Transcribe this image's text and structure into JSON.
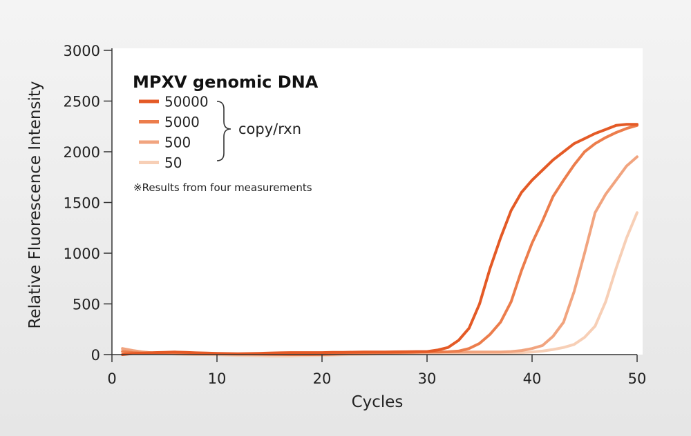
{
  "chart_data": {
    "type": "line",
    "title": "",
    "xlabel": "Cycles",
    "ylabel": "Relative Fluorescence Intensity",
    "xlim": [
      0,
      50
    ],
    "ylim": [
      0,
      3000
    ],
    "x_ticks": [
      0,
      10,
      20,
      30,
      40,
      50
    ],
    "y_ticks": [
      0,
      500,
      1000,
      1500,
      2000,
      2500,
      3000
    ],
    "grid": false,
    "legend": {
      "title": "MPXV genomic DNA",
      "placement": "top-left",
      "unit": "copy/rxn",
      "entries": [
        "50000",
        "5000",
        "500",
        "50"
      ]
    },
    "annotation": "※Results from four measurements",
    "series": [
      {
        "name": "50000",
        "color": "#e45a26",
        "x": [
          1,
          2,
          3,
          4,
          5,
          6,
          7,
          8,
          9,
          10,
          11,
          12,
          13,
          14,
          15,
          16,
          17,
          18,
          19,
          20,
          21,
          22,
          23,
          24,
          25,
          26,
          27,
          28,
          29,
          30,
          31,
          32,
          33,
          34,
          35,
          36,
          37,
          38,
          39,
          40,
          41,
          42,
          43,
          44,
          45,
          46,
          47,
          48,
          49,
          50
        ],
        "y": [
          0,
          10,
          15,
          20,
          22,
          25,
          22,
          18,
          15,
          12,
          10,
          8,
          10,
          12,
          15,
          18,
          20,
          20,
          20,
          20,
          22,
          22,
          24,
          25,
          25,
          26,
          27,
          28,
          30,
          30,
          45,
          70,
          140,
          260,
          500,
          850,
          1150,
          1420,
          1600,
          1720,
          1820,
          1920,
          2000,
          2080,
          2130,
          2180,
          2220,
          2260,
          2270,
          2270
        ]
      },
      {
        "name": "5000",
        "color": "#ec7d4c",
        "x": [
          1,
          2,
          3,
          4,
          5,
          6,
          7,
          8,
          9,
          10,
          11,
          12,
          13,
          14,
          15,
          16,
          17,
          18,
          19,
          20,
          21,
          22,
          23,
          24,
          25,
          26,
          27,
          28,
          29,
          30,
          31,
          32,
          33,
          34,
          35,
          36,
          37,
          38,
          39,
          40,
          41,
          42,
          43,
          44,
          45,
          46,
          47,
          48,
          49,
          50
        ],
        "y": [
          30,
          20,
          15,
          15,
          15,
          12,
          10,
          10,
          8,
          8,
          6,
          5,
          5,
          4,
          3,
          2,
          0,
          0,
          0,
          2,
          5,
          8,
          10,
          12,
          15,
          18,
          20,
          22,
          24,
          25,
          25,
          28,
          35,
          60,
          110,
          200,
          320,
          520,
          830,
          1100,
          1320,
          1560,
          1720,
          1870,
          2000,
          2080,
          2140,
          2190,
          2230,
          2260
        ]
      },
      {
        "name": "500",
        "color": "#f1a47f",
        "x": [
          1,
          2,
          3,
          4,
          5,
          6,
          7,
          8,
          9,
          10,
          11,
          12,
          13,
          14,
          15,
          16,
          17,
          18,
          19,
          20,
          21,
          22,
          23,
          24,
          25,
          26,
          27,
          28,
          29,
          30,
          31,
          32,
          33,
          34,
          35,
          36,
          37,
          38,
          39,
          40,
          41,
          42,
          43,
          44,
          45,
          46,
          47,
          48,
          49,
          50
        ],
        "y": [
          60,
          40,
          25,
          15,
          10,
          8,
          6,
          5,
          5,
          4,
          4,
          3,
          3,
          2,
          2,
          1,
          0,
          0,
          0,
          0,
          2,
          5,
          8,
          10,
          12,
          15,
          18,
          20,
          22,
          25,
          25,
          25,
          25,
          25,
          25,
          25,
          25,
          30,
          40,
          60,
          90,
          180,
          320,
          620,
          1000,
          1400,
          1580,
          1720,
          1860,
          1950
        ]
      },
      {
        "name": "50",
        "color": "#f7cfb6",
        "x": [
          1,
          2,
          3,
          4,
          5,
          6,
          7,
          8,
          9,
          10,
          11,
          12,
          13,
          14,
          15,
          16,
          17,
          18,
          19,
          20,
          21,
          22,
          23,
          24,
          25,
          26,
          27,
          28,
          29,
          30,
          31,
          32,
          33,
          34,
          35,
          36,
          37,
          38,
          39,
          40,
          41,
          42,
          43,
          44,
          45,
          46,
          47,
          48,
          49,
          50
        ],
        "y": [
          50,
          35,
          25,
          15,
          10,
          5,
          2,
          0,
          0,
          -2,
          -5,
          -8,
          -10,
          -12,
          -15,
          -15,
          -15,
          -12,
          -10,
          -8,
          -5,
          -2,
          0,
          2,
          5,
          8,
          10,
          12,
          14,
          15,
          15,
          15,
          15,
          15,
          15,
          15,
          15,
          18,
          20,
          25,
          35,
          50,
          70,
          100,
          170,
          280,
          520,
          850,
          1150,
          1400
        ]
      }
    ]
  }
}
